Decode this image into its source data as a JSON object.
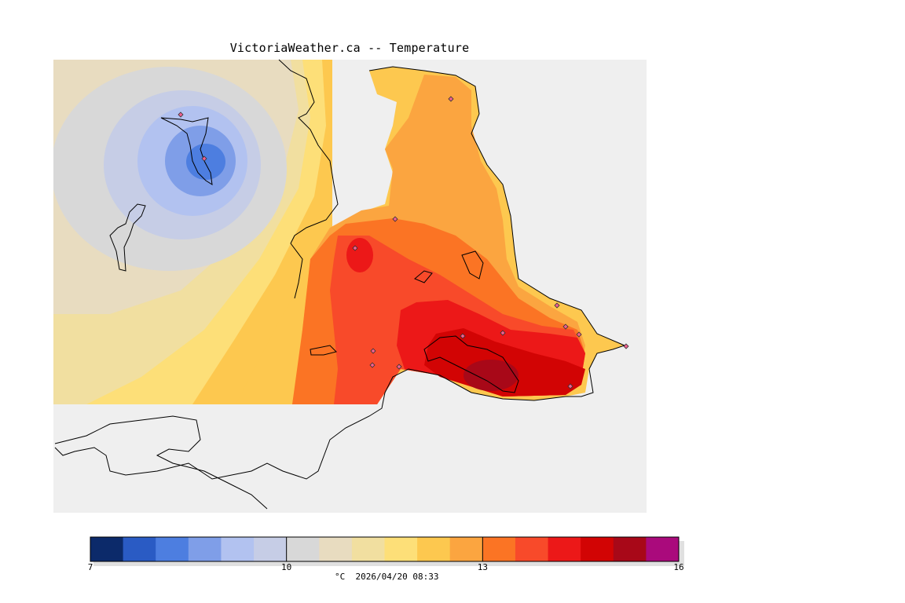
{
  "title": "VictoriaWeather.ca -- Temperature",
  "legend": {
    "unit": "°C",
    "timestamp": "2026/04/20 08:33",
    "min": 7,
    "max": 16,
    "tick_labels": [
      "7",
      "10",
      "13",
      "16"
    ],
    "color_steps": [
      "#0c2a6a",
      "#2a5bc4",
      "#4d7ee0",
      "#7f9ee8",
      "#b2c2f0",
      "#c6cde6",
      "#d8d8d8",
      "#e8dcc0",
      "#f1dfa0",
      "#fddf78",
      "#fdc84f",
      "#fba540",
      "#fb7424",
      "#f84a2a",
      "#ec1818",
      "#d20404",
      "#a80818",
      "#aa0a7c"
    ]
  },
  "stations_label": "weather-stations",
  "colors": {
    "map_background": "#efefef",
    "land_outline": "#000000"
  }
}
